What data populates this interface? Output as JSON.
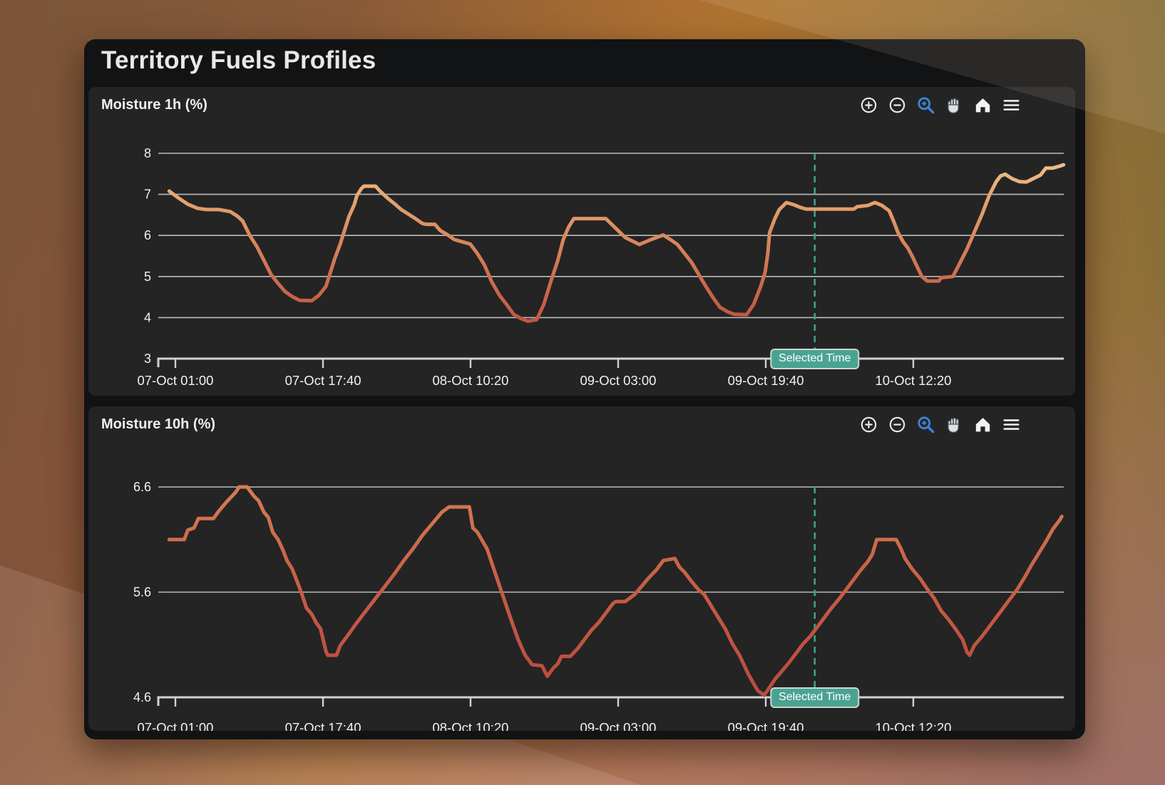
{
  "window": {
    "title": "Territory Fuels Profiles"
  },
  "colors": {
    "selected_time_line": "#3fa08b",
    "badge_bg": "#4aa392",
    "badge_border": "#ccd6cf",
    "grid": "#c9c9c9",
    "axis": "#d2d2d2",
    "tick_text": "#f1f1f1",
    "active_tool_blue": "#3d82d8"
  },
  "chart_data": [
    {
      "type": "line",
      "title": "Moisture 1h (%)",
      "xlabel": "",
      "ylabel": "",
      "grid": true,
      "legend": false,
      "ylim": [
        3,
        8
      ],
      "y_tick_labels": [
        "8",
        "7",
        "6",
        "5",
        "4",
        "3"
      ],
      "y_tick_values": [
        8,
        7,
        6,
        5,
        4,
        3
      ],
      "x_ticks": [
        {
          "label": "07-Oct 01:00",
          "hour": 0
        },
        {
          "label": "07-Oct 17:40",
          "hour": 16.67
        },
        {
          "label": "08-Oct 10:20",
          "hour": 33.33
        },
        {
          "label": "09-Oct 03:00",
          "hour": 50
        },
        {
          "label": "09-Oct 19:40",
          "hour": 66.67
        },
        {
          "label": "10-Oct 12:20",
          "hour": 83.33
        }
      ],
      "selected_time": {
        "label": "Selected Time",
        "hour": 72.2
      },
      "line_gradient": [
        "#f0c88e",
        "#e4a873",
        "#da8a5e",
        "#cd6e50",
        "#c25745",
        "#b84a40"
      ],
      "toolbar": [
        "zoom-in",
        "zoom-out",
        "box-zoom",
        "pan",
        "home",
        "menu"
      ],
      "series": [
        [
          -0.7,
          7.08
        ],
        [
          0.3,
          6.92
        ],
        [
          1.4,
          6.76
        ],
        [
          2.5,
          6.66
        ],
        [
          3.5,
          6.63
        ],
        [
          4.9,
          6.63
        ],
        [
          6.2,
          6.58
        ],
        [
          7.0,
          6.47
        ],
        [
          7.6,
          6.35
        ],
        [
          8.4,
          6.0
        ],
        [
          9.2,
          5.73
        ],
        [
          10.0,
          5.39
        ],
        [
          10.8,
          5.05
        ],
        [
          11.6,
          4.83
        ],
        [
          12.4,
          4.63
        ],
        [
          13.2,
          4.51
        ],
        [
          14.0,
          4.42
        ],
        [
          15.4,
          4.41
        ],
        [
          16.2,
          4.54
        ],
        [
          17.0,
          4.76
        ],
        [
          17.5,
          5.1
        ],
        [
          18.0,
          5.44
        ],
        [
          18.6,
          5.78
        ],
        [
          19.1,
          6.12
        ],
        [
          19.6,
          6.46
        ],
        [
          20.2,
          6.75
        ],
        [
          20.5,
          6.97
        ],
        [
          21.0,
          7.14
        ],
        [
          21.3,
          7.2
        ],
        [
          22.6,
          7.2
        ],
        [
          23.1,
          7.08
        ],
        [
          23.9,
          6.92
        ],
        [
          24.7,
          6.78
        ],
        [
          25.5,
          6.63
        ],
        [
          26.3,
          6.52
        ],
        [
          27.1,
          6.41
        ],
        [
          27.9,
          6.29
        ],
        [
          28.3,
          6.27
        ],
        [
          29.3,
          6.27
        ],
        [
          29.9,
          6.12
        ],
        [
          30.7,
          6.02
        ],
        [
          31.5,
          5.9
        ],
        [
          32.3,
          5.85
        ],
        [
          33.3,
          5.79
        ],
        [
          34.1,
          5.56
        ],
        [
          34.9,
          5.28
        ],
        [
          35.7,
          4.88
        ],
        [
          36.6,
          4.54
        ],
        [
          37.4,
          4.32
        ],
        [
          38.2,
          4.08
        ],
        [
          39.0,
          3.98
        ],
        [
          39.8,
          3.91
        ],
        [
          40.8,
          3.95
        ],
        [
          41.6,
          4.32
        ],
        [
          42.4,
          4.88
        ],
        [
          43.2,
          5.4
        ],
        [
          43.8,
          5.9
        ],
        [
          44.4,
          6.2
        ],
        [
          45.0,
          6.41
        ],
        [
          48.6,
          6.41
        ],
        [
          49.7,
          6.18
        ],
        [
          50.8,
          5.95
        ],
        [
          52.4,
          5.78
        ],
        [
          53.7,
          5.9
        ],
        [
          55.1,
          6.01
        ],
        [
          55.9,
          5.9
        ],
        [
          56.7,
          5.78
        ],
        [
          57.5,
          5.56
        ],
        [
          58.3,
          5.34
        ],
        [
          59.1,
          5.05
        ],
        [
          59.9,
          4.76
        ],
        [
          60.7,
          4.49
        ],
        [
          61.5,
          4.25
        ],
        [
          62.3,
          4.15
        ],
        [
          63.1,
          4.08
        ],
        [
          64.5,
          4.07
        ],
        [
          65.3,
          4.32
        ],
        [
          66.1,
          4.76
        ],
        [
          66.6,
          5.11
        ],
        [
          66.9,
          5.56
        ],
        [
          67.1,
          6.07
        ],
        [
          67.7,
          6.41
        ],
        [
          68.2,
          6.63
        ],
        [
          69.0,
          6.8
        ],
        [
          69.8,
          6.75
        ],
        [
          70.6,
          6.68
        ],
        [
          71.2,
          6.64
        ],
        [
          76.6,
          6.64
        ],
        [
          77.0,
          6.7
        ],
        [
          78.2,
          6.73
        ],
        [
          79.0,
          6.8
        ],
        [
          79.8,
          6.73
        ],
        [
          80.6,
          6.6
        ],
        [
          81.1,
          6.35
        ],
        [
          81.6,
          6.07
        ],
        [
          82.2,
          5.84
        ],
        [
          82.7,
          5.7
        ],
        [
          83.2,
          5.5
        ],
        [
          83.8,
          5.22
        ],
        [
          84.3,
          5.0
        ],
        [
          84.9,
          4.89
        ],
        [
          86.2,
          4.89
        ],
        [
          86.5,
          4.97
        ],
        [
          87.8,
          5.0
        ],
        [
          88.6,
          5.33
        ],
        [
          89.4,
          5.67
        ],
        [
          90.2,
          6.07
        ],
        [
          91.1,
          6.52
        ],
        [
          91.9,
          6.97
        ],
        [
          92.7,
          7.31
        ],
        [
          93.2,
          7.45
        ],
        [
          93.7,
          7.49
        ],
        [
          94.5,
          7.38
        ],
        [
          95.3,
          7.31
        ],
        [
          96.1,
          7.3
        ],
        [
          97.7,
          7.47
        ],
        [
          98.3,
          7.64
        ],
        [
          99.1,
          7.64
        ],
        [
          99.9,
          7.69
        ],
        [
          100.3,
          7.72
        ]
      ]
    },
    {
      "type": "line",
      "title": "Moisture 10h (%)",
      "xlabel": "",
      "ylabel": "",
      "grid": true,
      "legend": false,
      "ylim": [
        4.6,
        6.6
      ],
      "y_tick_labels": [
        "6.6",
        "5.6",
        "4.6"
      ],
      "y_tick_values": [
        6.6,
        5.6,
        4.6
      ],
      "x_ticks": [
        {
          "label": "07-Oct 01:00",
          "hour": 0
        },
        {
          "label": "07-Oct 17:40",
          "hour": 16.67
        },
        {
          "label": "08-Oct 10:20",
          "hour": 33.33
        },
        {
          "label": "09-Oct 03:00",
          "hour": 50
        },
        {
          "label": "09-Oct 19:40",
          "hour": 66.67
        },
        {
          "label": "10-Oct 12:20",
          "hour": 83.33
        }
      ],
      "selected_time": {
        "label": "Selected Time",
        "hour": 72.2
      },
      "line_gradient": [
        "#d67c52",
        "#c65c46",
        "#b84a3e"
      ],
      "toolbar": [
        "zoom-in",
        "zoom-out",
        "box-zoom",
        "pan",
        "home",
        "menu"
      ],
      "series": [
        [
          -0.7,
          6.1
        ],
        [
          1.0,
          6.1
        ],
        [
          1.4,
          6.19
        ],
        [
          2.1,
          6.21
        ],
        [
          2.6,
          6.3
        ],
        [
          4.3,
          6.3
        ],
        [
          4.9,
          6.37
        ],
        [
          5.7,
          6.45
        ],
        [
          6.8,
          6.55
        ],
        [
          7.2,
          6.6
        ],
        [
          8.1,
          6.6
        ],
        [
          8.9,
          6.51
        ],
        [
          9.4,
          6.47
        ],
        [
          10.0,
          6.36
        ],
        [
          10.5,
          6.31
        ],
        [
          11.0,
          6.17
        ],
        [
          11.6,
          6.1
        ],
        [
          12.2,
          5.99
        ],
        [
          12.6,
          5.9
        ],
        [
          13.2,
          5.82
        ],
        [
          13.8,
          5.69
        ],
        [
          14.2,
          5.6
        ],
        [
          14.8,
          5.45
        ],
        [
          15.4,
          5.39
        ],
        [
          15.9,
          5.31
        ],
        [
          16.4,
          5.25
        ],
        [
          17.0,
          5.04
        ],
        [
          17.2,
          5.0
        ],
        [
          18.2,
          5.0
        ],
        [
          18.6,
          5.09
        ],
        [
          19.4,
          5.18
        ],
        [
          20.4,
          5.3
        ],
        [
          21.5,
          5.42
        ],
        [
          22.6,
          5.54
        ],
        [
          23.7,
          5.66
        ],
        [
          24.7,
          5.77
        ],
        [
          25.8,
          5.9
        ],
        [
          26.9,
          6.02
        ],
        [
          27.9,
          6.14
        ],
        [
          29.1,
          6.26
        ],
        [
          30.1,
          6.36
        ],
        [
          30.9,
          6.41
        ],
        [
          33.2,
          6.41
        ],
        [
          33.6,
          6.21
        ],
        [
          34.1,
          6.17
        ],
        [
          35.2,
          6.01
        ],
        [
          36.0,
          5.81
        ],
        [
          36.8,
          5.61
        ],
        [
          37.9,
          5.34
        ],
        [
          38.7,
          5.15
        ],
        [
          39.5,
          5.0
        ],
        [
          40.3,
          4.91
        ],
        [
          41.4,
          4.9
        ],
        [
          42.0,
          4.8
        ],
        [
          42.7,
          4.88
        ],
        [
          43.2,
          4.92
        ],
        [
          43.6,
          4.99
        ],
        [
          44.6,
          4.99
        ],
        [
          45.4,
          5.06
        ],
        [
          46.2,
          5.15
        ],
        [
          47.0,
          5.24
        ],
        [
          47.8,
          5.31
        ],
        [
          48.6,
          5.4
        ],
        [
          49.4,
          5.49
        ],
        [
          49.7,
          5.51
        ],
        [
          50.8,
          5.51
        ],
        [
          51.9,
          5.58
        ],
        [
          52.7,
          5.66
        ],
        [
          53.5,
          5.74
        ],
        [
          54.3,
          5.81
        ],
        [
          55.1,
          5.9
        ],
        [
          56.4,
          5.92
        ],
        [
          56.9,
          5.84
        ],
        [
          57.5,
          5.79
        ],
        [
          58.3,
          5.7
        ],
        [
          59.1,
          5.62
        ],
        [
          59.7,
          5.58
        ],
        [
          60.5,
          5.47
        ],
        [
          61.3,
          5.36
        ],
        [
          62.1,
          5.25
        ],
        [
          62.9,
          5.11
        ],
        [
          63.7,
          5.0
        ],
        [
          64.2,
          4.91
        ],
        [
          64.7,
          4.82
        ],
        [
          65.3,
          4.73
        ],
        [
          65.8,
          4.66
        ],
        [
          66.5,
          4.62
        ],
        [
          67.7,
          4.77
        ],
        [
          68.5,
          4.85
        ],
        [
          69.3,
          4.93
        ],
        [
          70.1,
          5.02
        ],
        [
          70.9,
          5.11
        ],
        [
          71.7,
          5.18
        ],
        [
          72.5,
          5.27
        ],
        [
          73.3,
          5.36
        ],
        [
          74.1,
          5.45
        ],
        [
          75.0,
          5.54
        ],
        [
          75.8,
          5.63
        ],
        [
          76.6,
          5.72
        ],
        [
          77.4,
          5.81
        ],
        [
          78.2,
          5.89
        ],
        [
          78.7,
          5.96
        ],
        [
          79.2,
          6.1
        ],
        [
          81.4,
          6.1
        ],
        [
          81.9,
          6.02
        ],
        [
          82.4,
          5.92
        ],
        [
          83.2,
          5.82
        ],
        [
          84.1,
          5.73
        ],
        [
          84.9,
          5.63
        ],
        [
          85.7,
          5.54
        ],
        [
          86.5,
          5.42
        ],
        [
          87.3,
          5.34
        ],
        [
          88.1,
          5.25
        ],
        [
          88.9,
          5.15
        ],
        [
          89.4,
          5.03
        ],
        [
          89.7,
          5.0
        ],
        [
          90.2,
          5.09
        ],
        [
          91.1,
          5.18
        ],
        [
          91.9,
          5.27
        ],
        [
          92.7,
          5.36
        ],
        [
          93.5,
          5.45
        ],
        [
          94.3,
          5.54
        ],
        [
          95.1,
          5.63
        ],
        [
          95.9,
          5.74
        ],
        [
          96.7,
          5.86
        ],
        [
          97.5,
          5.97
        ],
        [
          98.3,
          6.08
        ],
        [
          99.1,
          6.2
        ],
        [
          99.9,
          6.29
        ],
        [
          100.1,
          6.32
        ]
      ]
    }
  ]
}
